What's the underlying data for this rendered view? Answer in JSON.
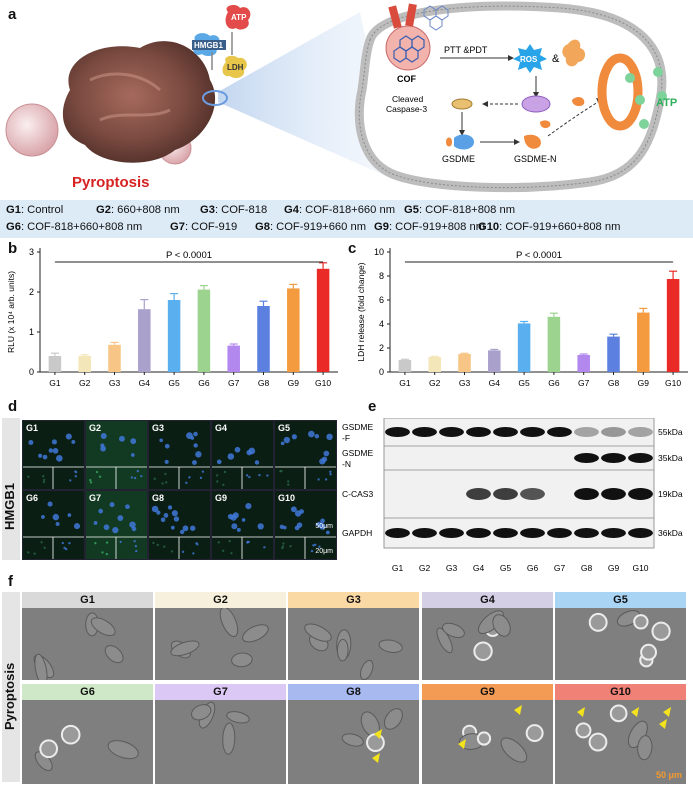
{
  "panels": {
    "a": "a",
    "b": "b",
    "c": "c",
    "d": "d",
    "e": "e",
    "f": "f"
  },
  "schematic": {
    "pyroptosis": "Pyroptosis",
    "atp_top": "ATP",
    "hmgb1": "HMGB1",
    "ldh": "LDH",
    "cof": "COF",
    "ptt_pdt": "PTT &PDT",
    "ros": "ROS",
    "amp": "&",
    "cleaved_caspase_line1": "Cleaved",
    "cleaved_caspase_line2": "Caspase-3",
    "gsdme": "GSDME",
    "gsdme_n": "GSDME-N",
    "atp_right": "ATP"
  },
  "groups_legend": [
    {
      "id": "G1",
      "desc": ": Control"
    },
    {
      "id": "G2",
      "desc": ": 660+808 nm"
    },
    {
      "id": "G3",
      "desc": ": COF-818"
    },
    {
      "id": "G4",
      "desc": ": COF-818+660 nm"
    },
    {
      "id": "G5",
      "desc": ": COF-818+808 nm"
    },
    {
      "id": "G6",
      "desc": ": COF-818+660+808 nm"
    },
    {
      "id": "G7",
      "desc": ": COF-919"
    },
    {
      "id": "G8",
      "desc": ": COF-919+660 nm"
    },
    {
      "id": "G9",
      "desc": ": COF-919+808 nm"
    },
    {
      "id": "G10",
      "desc": ": COF-919+660+808 nm"
    }
  ],
  "chart_data": [
    {
      "type": "bar",
      "panel": "b",
      "ylabel": "RLU (x 10⁴ arb. units)",
      "categories": [
        "G1",
        "G2",
        "G3",
        "G4",
        "G5",
        "G6",
        "G7",
        "G8",
        "G9",
        "G10"
      ],
      "values": [
        0.4,
        0.4,
        0.68,
        1.57,
        1.8,
        2.06,
        0.66,
        1.65,
        2.09,
        2.58
      ],
      "errors": [
        0.07,
        0.03,
        0.06,
        0.24,
        0.16,
        0.1,
        0.04,
        0.12,
        0.1,
        0.15
      ],
      "colors": [
        "#c9c9c9",
        "#f3e6b8",
        "#f7c686",
        "#a9a0cc",
        "#5ab0ee",
        "#9bd38f",
        "#b388ee",
        "#5b80e0",
        "#f49a3f",
        "#ea2a26"
      ],
      "ylim": [
        0,
        3
      ],
      "yticks": [
        "0",
        "1",
        "2",
        "3"
      ],
      "annotation": "P < 0.0001"
    },
    {
      "type": "bar",
      "panel": "c",
      "ylabel": "LDH release (fold change)",
      "categories": [
        "G1",
        "G2",
        "G3",
        "G4",
        "G5",
        "G6",
        "G7",
        "G8",
        "G9",
        "G10"
      ],
      "values": [
        1.0,
        1.25,
        1.5,
        1.8,
        4.05,
        4.6,
        1.42,
        2.95,
        4.95,
        7.75
      ],
      "errors": [
        0.06,
        0.05,
        0.06,
        0.08,
        0.16,
        0.3,
        0.08,
        0.2,
        0.35,
        0.65
      ],
      "colors": [
        "#c9c9c9",
        "#f3e6b8",
        "#f7c686",
        "#a9a0cc",
        "#5ab0ee",
        "#9bd38f",
        "#b388ee",
        "#5b80e0",
        "#f49a3f",
        "#ea2a26"
      ],
      "ylim": [
        0,
        10
      ],
      "yticks": [
        "0",
        "2",
        "4",
        "6",
        "8",
        "10"
      ],
      "annotation": "P < 0.0001"
    }
  ],
  "panel_d": {
    "side_label": "HMGB1",
    "tiles": [
      "G1",
      "G2",
      "G3",
      "G4",
      "G5",
      "G6",
      "G7",
      "G8",
      "G9",
      "G10"
    ],
    "scale_large": "50μm",
    "scale_small": "20μm"
  },
  "panel_e": {
    "rows": [
      {
        "label_l1": "GSDME",
        "label_l2": "-F",
        "kda": "55kDa",
        "intensity": [
          1,
          1,
          1,
          1,
          1,
          1,
          1,
          0.35,
          0.4,
          0.35
        ]
      },
      {
        "label_l1": "GSDME",
        "label_l2": "-N",
        "kda": "35kDa",
        "intensity": [
          0,
          0,
          0,
          0,
          0,
          0,
          0,
          1,
          1,
          1
        ]
      },
      {
        "label_l1": "C-CAS3",
        "label_l2": "",
        "kda": "19kDa",
        "intensity": [
          0,
          0,
          0,
          0.8,
          0.8,
          0.7,
          0,
          1,
          1,
          1
        ]
      },
      {
        "label_l1": "GAPDH",
        "label_l2": "",
        "kda": "36kDa",
        "intensity": [
          1,
          1,
          1,
          1,
          1,
          1,
          1,
          1,
          1,
          1
        ]
      }
    ],
    "lanes": [
      "G1",
      "G2",
      "G3",
      "G4",
      "G5",
      "G6",
      "G7",
      "G8",
      "G9",
      "G10"
    ]
  },
  "panel_f": {
    "side_label": "Pyroptosis",
    "tiles": [
      {
        "label": "G1",
        "color": "#d9d9d9"
      },
      {
        "label": "G2",
        "color": "#f7f0dc"
      },
      {
        "label": "G3",
        "color": "#fbd9a5"
      },
      {
        "label": "G4",
        "color": "#d5cfe6"
      },
      {
        "label": "G5",
        "color": "#a9d4f4"
      },
      {
        "label": "G6",
        "color": "#cfe8c7"
      },
      {
        "label": "G7",
        "color": "#dcc8f5"
      },
      {
        "label": "G8",
        "color": "#a7b9ee"
      },
      {
        "label": "G9",
        "color": "#f39a55"
      },
      {
        "label": "G10",
        "color": "#ef8177"
      }
    ],
    "scale": "50 μm"
  }
}
